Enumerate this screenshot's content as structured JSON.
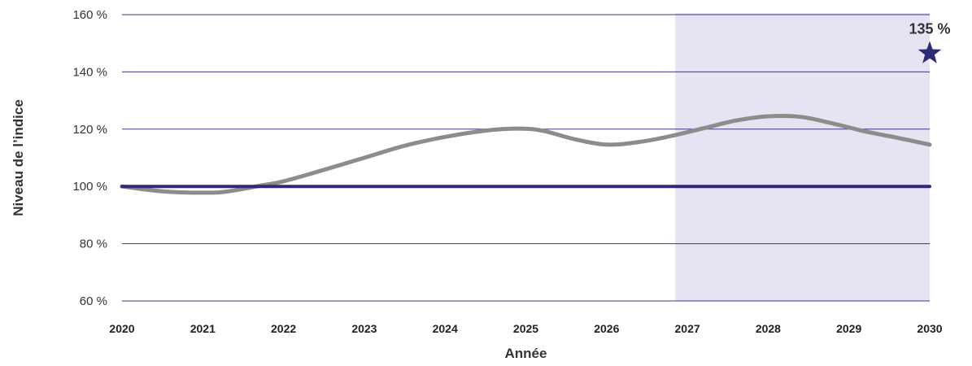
{
  "chart_data": {
    "type": "line",
    "xlabel": "Année",
    "ylabel": "Niveau de l’indice",
    "xlim": [
      2020,
      2030
    ],
    "ylim": [
      60,
      160
    ],
    "x_ticks": [
      "2020",
      "2021",
      "2022",
      "2023",
      "2024",
      "2025",
      "2026",
      "2027",
      "2028",
      "2029",
      "2030"
    ],
    "y_ticks": [
      {
        "value": 60,
        "label": "60 %"
      },
      {
        "value": 80,
        "label": "80 %"
      },
      {
        "value": 100,
        "label": "100 %"
      },
      {
        "value": 120,
        "label": "120 %"
      },
      {
        "value": 140,
        "label": "140 %"
      },
      {
        "value": 160,
        "label": "160 %"
      }
    ],
    "grid": true,
    "shaded_region": {
      "x_start": 2026.85,
      "x_end": 2030,
      "color": "#e6e4f3"
    },
    "series": [
      {
        "color": "#8c8c8c",
        "x": [
          2020,
          2020.5,
          2021,
          2021.3,
          2021.7,
          2022,
          2022.5,
          2023,
          2023.5,
          2024,
          2024.5,
          2024.9,
          2025.2,
          2025.6,
          2026,
          2026.4,
          2026.8,
          2027.2,
          2027.6,
          2028,
          2028.4,
          2028.8,
          2029.2,
          2029.6,
          2030
        ],
        "y": [
          100,
          98.3,
          97.8,
          98.2,
          100.2,
          101.8,
          105.8,
          110,
          114.2,
          117.3,
          119.5,
          120.2,
          119.5,
          116.5,
          114.6,
          115.5,
          117.6,
          120.3,
          123,
          124.5,
          124.3,
          122,
          119.2,
          117,
          114.6
        ]
      },
      {
        "color": "#2e2a78",
        "x": [
          2020,
          2030
        ],
        "y": [
          100,
          100
        ]
      }
    ],
    "annotations": [
      {
        "x": 2030,
        "y": 146.5,
        "marker": "star",
        "label": "135 %",
        "color": "#2e2a78"
      }
    ]
  }
}
